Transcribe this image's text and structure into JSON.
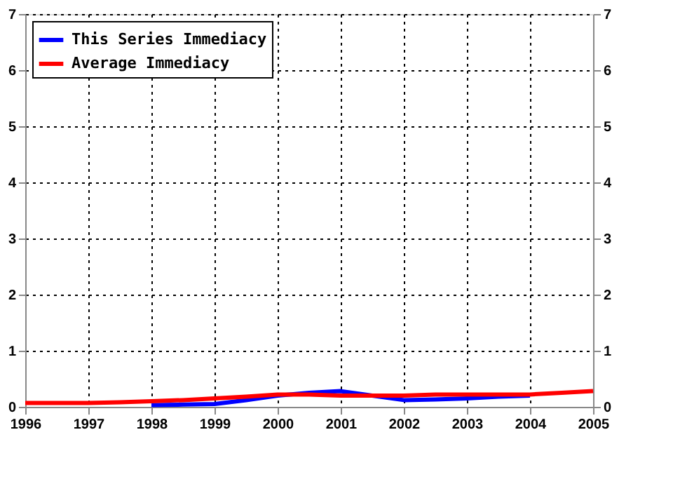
{
  "chart_data": {
    "type": "line",
    "x": [
      1996,
      1997,
      1997.5,
      1998,
      1998.5,
      1999,
      1999.5,
      2000,
      2000.5,
      2001,
      2001.5,
      2002,
      2002.5,
      2003,
      2003.5,
      2004,
      2004.5,
      2005
    ],
    "series": [
      {
        "name": "This Series Immediacy",
        "color": "#0000ff",
        "x": [
          1998,
          1998.5,
          1999,
          1999.5,
          2000,
          2000.5,
          2001,
          2001.5,
          2002,
          2002.5,
          2003,
          2003.5,
          2004
        ],
        "values": [
          0.03,
          0.04,
          0.05,
          0.12,
          0.2,
          0.25,
          0.28,
          0.2,
          0.12,
          0.13,
          0.15,
          0.18,
          0.2
        ]
      },
      {
        "name": "Average Immediacy",
        "color": "#ff0000",
        "values": [
          0.07,
          0.07,
          0.08,
          0.1,
          0.12,
          0.15,
          0.18,
          0.22,
          0.22,
          0.2,
          0.2,
          0.2,
          0.22,
          0.22,
          0.22,
          0.22,
          0.25,
          0.28
        ]
      }
    ],
    "xlim": [
      1996,
      2005
    ],
    "xticks": [
      1996,
      1997,
      1998,
      1999,
      2000,
      2001,
      2002,
      2003,
      2004,
      2005
    ],
    "ylim": [
      0,
      7
    ],
    "yticks": [
      0,
      1,
      2,
      3,
      4,
      5,
      6,
      7
    ],
    "y2lim": [
      0,
      7
    ],
    "y2ticks": [
      0,
      1,
      2,
      3,
      4,
      5,
      6,
      7
    ],
    "grid": true,
    "legend": "top left",
    "line_style": "solid",
    "marker": "none"
  }
}
